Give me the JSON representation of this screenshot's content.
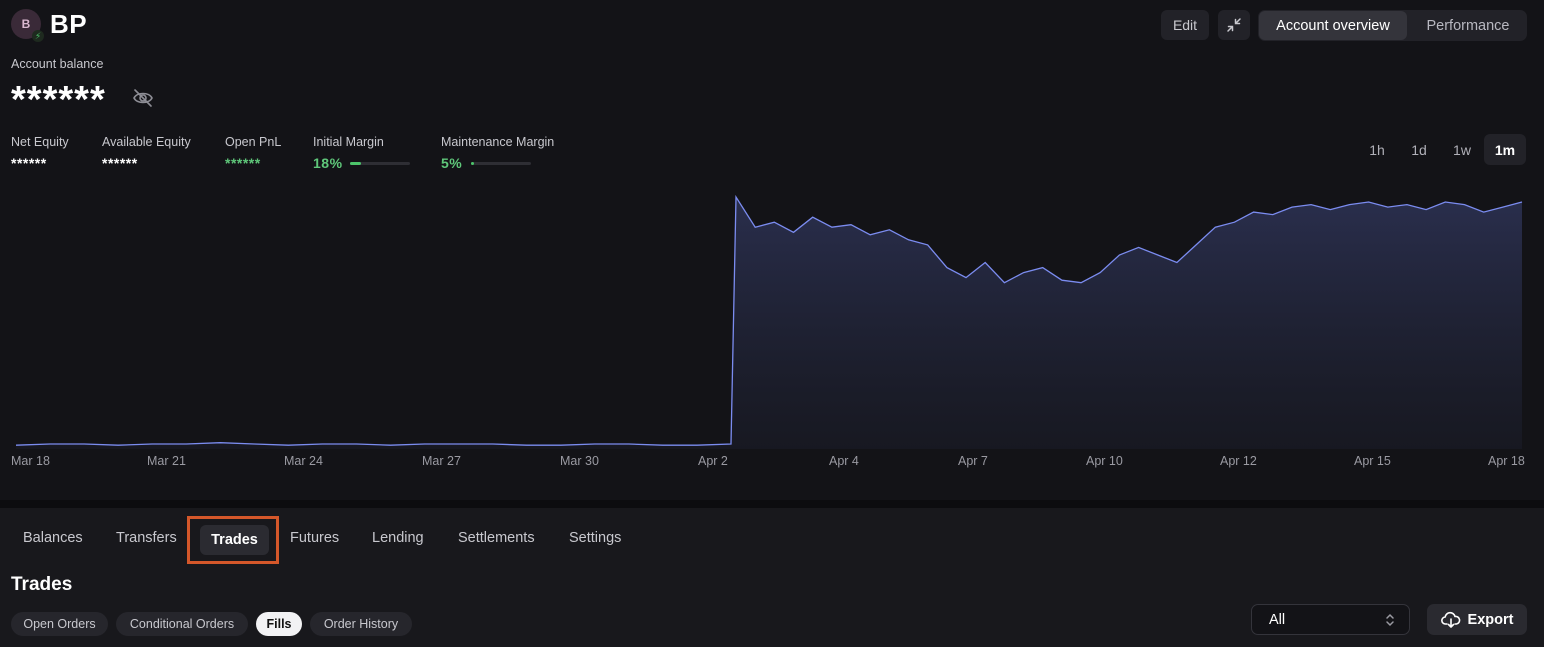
{
  "account": {
    "initial": "B",
    "name": "BP"
  },
  "header": {
    "edit_label": "Edit",
    "views": [
      "Account overview",
      "Performance"
    ],
    "active_view": "Account overview"
  },
  "balance": {
    "label": "Account balance",
    "value": "******"
  },
  "stats": [
    {
      "label": "Net Equity",
      "value": "******"
    },
    {
      "label": "Available Equity",
      "value": "******"
    },
    {
      "label": "Open PnL",
      "value": "******"
    },
    {
      "label": "Initial Margin",
      "value": "18%",
      "level": 0.18
    },
    {
      "label": "Maintenance Margin",
      "value": "5%",
      "level": 0.05
    }
  ],
  "ranges": [
    "1h",
    "1d",
    "1w",
    "1m"
  ],
  "active_range": "1m",
  "chart_data": {
    "type": "area",
    "title": "",
    "xlabel": "",
    "ylabel": "",
    "x_ticks": [
      "Mar 18",
      "Mar 21",
      "Mar 24",
      "Mar 27",
      "Mar 30",
      "Apr 2",
      "Apr 4",
      "Apr 7",
      "Apr 10",
      "Apr 12",
      "Apr 15",
      "Apr 18"
    ],
    "note_values": "values are relative (hidden balance); 0-100 scale",
    "series": [
      {
        "values": [
          1.5,
          2,
          2,
          1.5,
          2,
          2,
          2.5,
          2,
          1.5,
          2,
          2,
          1.5,
          2,
          2,
          2,
          1.5,
          1.5,
          2,
          2,
          1.5,
          1.5,
          2,
          100,
          88,
          90,
          86,
          92,
          88,
          89,
          85,
          87,
          83,
          81,
          72,
          68,
          74,
          66,
          70,
          72,
          67,
          66,
          70,
          77,
          80,
          77,
          74,
          81,
          88,
          90,
          94,
          93,
          96,
          97,
          95,
          97,
          98,
          96,
          97,
          95,
          98,
          97,
          94,
          96,
          98
        ]
      }
    ],
    "area_color": "#2b3050",
    "line_color": "#7b8cf0",
    "grid": false
  },
  "tabs": [
    "Balances",
    "Transfers",
    "Trades",
    "Futures",
    "Lending",
    "Settlements",
    "Settings"
  ],
  "active_tab": "Trades",
  "section": {
    "title": "Trades"
  },
  "subtabs": [
    "Open Orders",
    "Conditional Orders",
    "Fills",
    "Order History"
  ],
  "active_subtab": "Fills",
  "filter": {
    "value": "All"
  },
  "export_label": "Export",
  "colors": {
    "background": "#131317",
    "accent_green": "#4cc46a",
    "highlight": "#d4572a",
    "line": "#7b8cf0"
  }
}
